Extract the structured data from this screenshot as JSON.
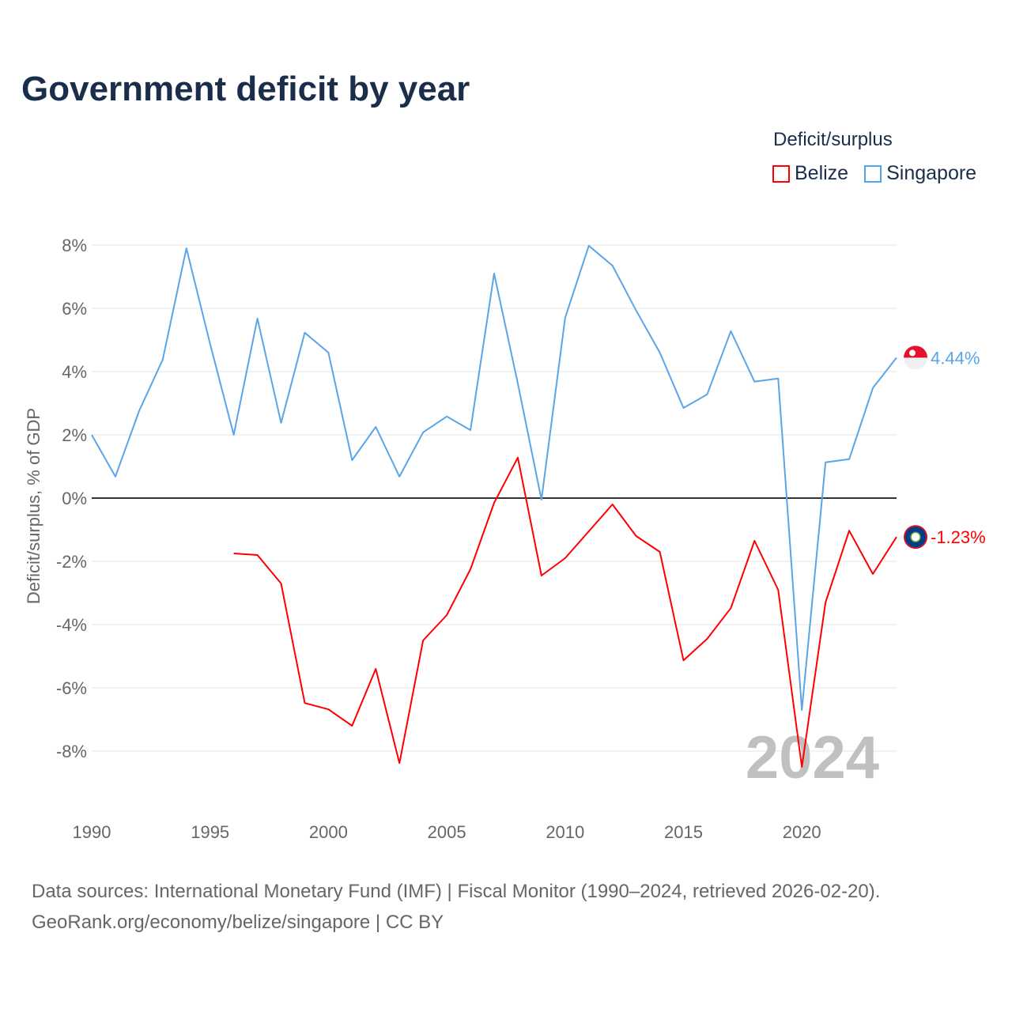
{
  "title": "Government deficit by year",
  "legend": {
    "title": "Deficit/surplus",
    "items": [
      {
        "label": "Belize",
        "color": "#ff0000"
      },
      {
        "label": "Singapore",
        "color": "#5aa5e8"
      }
    ]
  },
  "year_watermark": "2024",
  "source_line1": "Data sources: International Monetary Fund (IMF) | Fiscal Monitor (1990–2024, retrieved 2026-02-20).",
  "source_line2": "GeoRank.org/economy/belize/singapore | CC BY",
  "chart_data": {
    "type": "line",
    "title": "Government deficit by year",
    "xlabel": "",
    "ylabel": "Deficit/surplus, % of GDP",
    "xlim": [
      1990,
      2024
    ],
    "ylim": [
      -10,
      8
    ],
    "xticks": [
      1990,
      1995,
      2000,
      2005,
      2010,
      2015,
      2020
    ],
    "xtick_labels": [
      "1990",
      "1995",
      "2000",
      "2005",
      "2010",
      "2015",
      "2020"
    ],
    "yticks": [
      8,
      6,
      4,
      2,
      0,
      -2,
      -4,
      -6,
      -8
    ],
    "ytick_labels": [
      "8%",
      "6%",
      "4%",
      "2%",
      "0%",
      "-2%",
      "-4%",
      "-6%",
      "-8%"
    ],
    "grid": true,
    "legend_position": "top-right",
    "series": [
      {
        "name": "Belize",
        "color": "#ff0000",
        "end_label": "-1.23%",
        "flag": "belize-flag",
        "x": [
          1996,
          1997,
          1998,
          1999,
          2000,
          2001,
          2002,
          2003,
          2004,
          2005,
          2006,
          2007,
          2008,
          2009,
          2010,
          2011,
          2012,
          2013,
          2014,
          2015,
          2016,
          2017,
          2018,
          2019,
          2020,
          2021,
          2022,
          2023,
          2024
        ],
        "values": [
          -1.75,
          -1.8,
          -2.7,
          -6.48,
          -6.68,
          -7.2,
          -5.4,
          -8.38,
          -4.5,
          -3.7,
          -2.25,
          -0.15,
          1.28,
          -2.45,
          -1.9,
          -1.05,
          -0.2,
          -1.2,
          -1.7,
          -5.13,
          -4.45,
          -3.48,
          -1.35,
          -2.9,
          -8.5,
          -3.3,
          -1.03,
          -2.4,
          -1.23
        ]
      },
      {
        "name": "Singapore",
        "color": "#5aa5e8",
        "end_label": "4.44%",
        "flag": "singapore-flag",
        "x": [
          1990,
          1991,
          1992,
          1993,
          1994,
          1995,
          1996,
          1997,
          1998,
          1999,
          2000,
          2001,
          2002,
          2003,
          2004,
          2005,
          2006,
          2007,
          2008,
          2009,
          2010,
          2011,
          2012,
          2013,
          2014,
          2015,
          2016,
          2017,
          2018,
          2019,
          2020,
          2021,
          2022,
          2023,
          2024
        ],
        "values": [
          2.0,
          0.68,
          2.75,
          4.38,
          7.9,
          4.88,
          2.0,
          5.68,
          2.38,
          5.23,
          4.6,
          1.2,
          2.25,
          0.68,
          2.08,
          2.58,
          2.15,
          7.1,
          3.63,
          -0.05,
          5.7,
          7.98,
          7.35,
          5.93,
          4.6,
          2.85,
          3.28,
          5.28,
          3.68,
          3.78,
          -6.7,
          1.13,
          1.23,
          3.48,
          4.44
        ]
      }
    ]
  }
}
